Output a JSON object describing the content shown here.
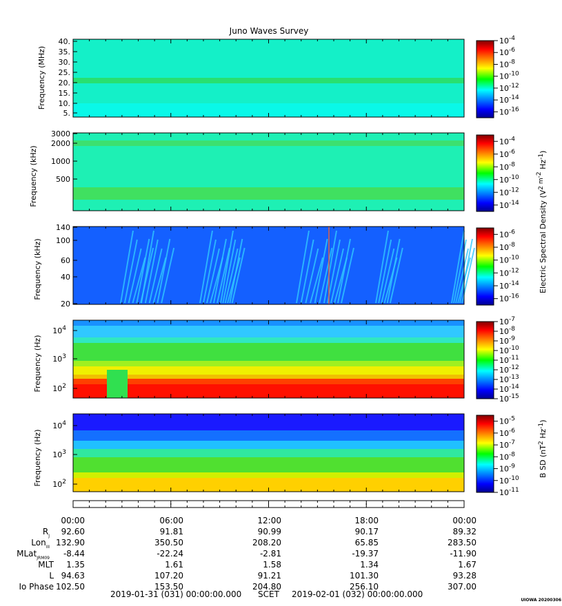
{
  "title": "Juno Waves Survey",
  "panels": [
    {
      "id": "mhz",
      "ylabel": "Frequency (MHz)",
      "yticks": [
        "40.",
        "35.",
        "30.",
        "25.",
        "20.",
        "15.",
        "10.",
        "5."
      ],
      "cbar": {
        "labels": [
          {
            "b": "10",
            "e": "-4"
          },
          {
            "b": "10",
            "e": "-6"
          },
          {
            "b": "10",
            "e": "-8"
          },
          {
            "b": "10",
            "e": "-10"
          },
          {
            "b": "10",
            "e": "-12"
          },
          {
            "b": "10",
            "e": "-14"
          },
          {
            "b": "10",
            "e": "-16"
          }
        ],
        "range": [
          -17,
          -4
        ]
      }
    },
    {
      "id": "khz_hi",
      "ylabel": "Frequency (kHz)",
      "yticks": [
        "3000",
        "2000",
        "1000",
        "500"
      ],
      "cbar": {
        "labels": [
          {
            "b": "10",
            "e": "-4"
          },
          {
            "b": "10",
            "e": "-6"
          },
          {
            "b": "10",
            "e": "-8"
          },
          {
            "b": "10",
            "e": "-10"
          },
          {
            "b": "10",
            "e": "-12"
          },
          {
            "b": "10",
            "e": "-14"
          }
        ],
        "range": [
          -15,
          -3
        ]
      }
    },
    {
      "id": "khz_lo",
      "ylabel": "Frequency (kHz)",
      "yticks": [
        "140",
        "100",
        "60",
        "40",
        "20"
      ],
      "cbar": {
        "labels": [
          {
            "b": "10",
            "e": "-6"
          },
          {
            "b": "10",
            "e": "-8"
          },
          {
            "b": "10",
            "e": "-10"
          },
          {
            "b": "10",
            "e": "-12"
          },
          {
            "b": "10",
            "e": "-14"
          },
          {
            "b": "10",
            "e": "-16"
          }
        ],
        "range": [
          -17,
          -5
        ]
      }
    },
    {
      "id": "hz_e",
      "ylabel": "Frequency (Hz)",
      "yticks": [
        {
          "b": "10",
          "e": "4"
        },
        {
          "b": "10",
          "e": "3"
        },
        {
          "b": "10",
          "e": "2"
        }
      ],
      "cbar": {
        "labels": [
          {
            "b": "10",
            "e": "-7"
          },
          {
            "b": "10",
            "e": "-8"
          },
          {
            "b": "10",
            "e": "-9"
          },
          {
            "b": "10",
            "e": "-10"
          },
          {
            "b": "10",
            "e": "-11"
          },
          {
            "b": "10",
            "e": "-12"
          },
          {
            "b": "10",
            "e": "-13"
          },
          {
            "b": "10",
            "e": "-14"
          },
          {
            "b": "10",
            "e": "-15"
          }
        ],
        "range": [
          -15,
          -7
        ]
      }
    },
    {
      "id": "hz_b",
      "ylabel": "Frequency (Hz)",
      "yticks": [
        {
          "b": "10",
          "e": "4"
        },
        {
          "b": "10",
          "e": "3"
        },
        {
          "b": "10",
          "e": "2"
        }
      ],
      "cbar": {
        "labels": [
          {
            "b": "10",
            "e": "-5"
          },
          {
            "b": "10",
            "e": "-6"
          },
          {
            "b": "10",
            "e": "-7"
          },
          {
            "b": "10",
            "e": "-8"
          },
          {
            "b": "10",
            "e": "-9"
          },
          {
            "b": "10",
            "e": "-10"
          },
          {
            "b": "10",
            "e": "-11"
          }
        ],
        "range": [
          -11,
          -4.5
        ]
      }
    }
  ],
  "colorbar_titles": {
    "electric": "Electric Spectral Density (V",
    "electric_unit": "2 m",
    "electric_unit2": "-2",
    "electric_unit3": " Hz",
    "electric_unit4": "-1",
    "electric_close": ")",
    "magnetic": "B SD (nT",
    "magnetic_sup": "2",
    "magnetic_mid": " Hz",
    "magnetic_sup2": "-1",
    "magnetic_close": ")"
  },
  "chart_data": {
    "type": "heatmap",
    "title": "Juno Waves Survey",
    "x_axis": {
      "ticks": [
        "00:00",
        "06:00",
        "12:00",
        "18:00",
        "00:00"
      ]
    },
    "panels": [
      {
        "ylabel": "Frequency (MHz)",
        "ylim": [
          4,
          40
        ],
        "colorbar_log_range": [
          -17,
          -4
        ],
        "features": [
          {
            "type": "band",
            "freq": 21,
            "level": -11
          },
          {
            "type": "background",
            "level": -13
          }
        ]
      },
      {
        "ylabel": "Frequency (kHz)",
        "ylim": [
          0,
          3000
        ],
        "colorbar_log_range": [
          -15,
          -3
        ],
        "features": [
          {
            "type": "band",
            "freq": 2000,
            "level": -11.5
          },
          {
            "type": "band",
            "freq": 200,
            "level": -11
          },
          {
            "type": "background",
            "level": -12.5
          }
        ]
      },
      {
        "ylabel": "Frequency (kHz)",
        "ylim": [
          20,
          140
        ],
        "colorbar_log_range": [
          -17,
          -5
        ],
        "features": [
          {
            "type": "background",
            "level": -14.5
          },
          {
            "type": "bursts",
            "level": -12.5
          }
        ]
      },
      {
        "ylabel": "Frequency (Hz)",
        "ylim": [
          50,
          20000
        ],
        "colorbar_log_range": [
          -15,
          -7
        ],
        "features": [
          {
            "type": "gradient",
            "level_low": -7,
            "level_high": -13.5
          }
        ]
      },
      {
        "ylabel": "Frequency (Hz)",
        "ylim": [
          50,
          20000
        ],
        "colorbar_log_range": [
          -11,
          -4.5
        ],
        "features": [
          {
            "type": "gradient",
            "level_low": -5.5,
            "level_high": -10.5
          }
        ]
      }
    ]
  },
  "ephemeris": {
    "times": [
      "00:00",
      "06:00",
      "12:00",
      "18:00",
      "00:00"
    ],
    "rows": [
      {
        "label": "R",
        "sub": "J",
        "values": [
          "92.60",
          "91.81",
          "90.99",
          "90.17",
          "89.32"
        ]
      },
      {
        "label": "Lon",
        "sub": "III",
        "values": [
          "132.90",
          "350.50",
          "208.20",
          "65.85",
          "283.50"
        ]
      },
      {
        "label": "MLat",
        "sub": "JRM09",
        "values": [
          "-8.44",
          "-22.24",
          "-2.81",
          "-19.37",
          "-11.90"
        ]
      },
      {
        "label": "MLT",
        "sub": "",
        "values": [
          "1.35",
          "1.61",
          "1.58",
          "1.34",
          "1.67"
        ]
      },
      {
        "label": "L",
        "sub": "",
        "values": [
          "94.63",
          "107.20",
          "91.21",
          "101.30",
          "93.28"
        ]
      },
      {
        "label": "Io Phase",
        "sub": "",
        "values": [
          "102.50",
          "153.50",
          "204.80",
          "256.10",
          "307.00"
        ]
      }
    ],
    "start": "2019-01-31 (031) 00:00:00.000",
    "scet": "SCET",
    "end": "2019-02-01 (032) 00:00:00.000"
  },
  "footer_tag": "UIOWA 20200306"
}
